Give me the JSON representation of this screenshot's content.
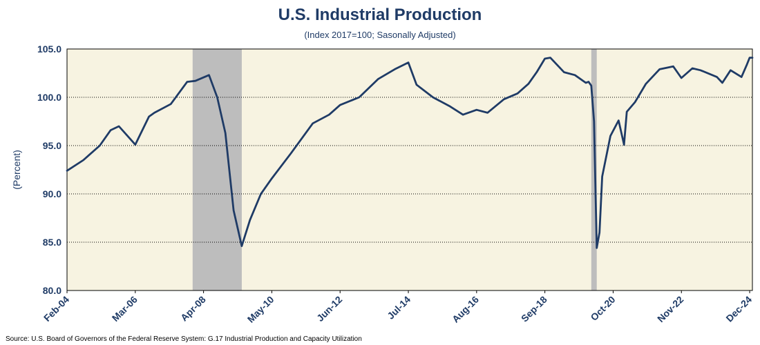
{
  "chart_data": {
    "type": "line",
    "title": "U.S. Industrial Production",
    "subtitle": "(Index 2017=100; Sasonally Adjusted)",
    "xlabel": "",
    "ylabel": "(Percent)",
    "ylim": [
      80,
      105
    ],
    "y_ticks": [
      "80.0",
      "85.0",
      "90.0",
      "95.0",
      "100.0",
      "105.0"
    ],
    "x_ticks": [
      {
        "label": "Feb-04",
        "date": "2004-02"
      },
      {
        "label": "Mar-06",
        "date": "2006-03"
      },
      {
        "label": "Apr-08",
        "date": "2008-04"
      },
      {
        "label": "May-10",
        "date": "2010-05"
      },
      {
        "label": "Jun-12",
        "date": "2012-06"
      },
      {
        "label": "Jul-14",
        "date": "2014-07"
      },
      {
        "label": "Aug-16",
        "date": "2016-08"
      },
      {
        "label": "Sep-18",
        "date": "2018-09"
      },
      {
        "label": "Oct-20",
        "date": "2020-10"
      },
      {
        "label": "Nov-22",
        "date": "2022-11"
      },
      {
        "label": "Dec-24",
        "date": "2024-12"
      }
    ],
    "grid": "horizontal-dotted",
    "recessions": [
      {
        "start": "2007-12",
        "end": "2009-06"
      },
      {
        "start": "2020-02",
        "end": "2020-04"
      }
    ],
    "colors": {
      "line": "#1f3b66",
      "plot_background": "#f7f3e1",
      "recession": "#bdbdbd",
      "text": "#1f3b66"
    },
    "x": [
      "2004-02",
      "2004-08",
      "2005-02",
      "2005-06",
      "2005-09",
      "2006-03",
      "2006-08",
      "2006-10",
      "2007-04",
      "2007-10",
      "2008-01",
      "2008-06",
      "2008-09",
      "2008-12",
      "2009-03",
      "2009-06",
      "2009-09",
      "2010-01",
      "2010-05",
      "2010-12",
      "2011-08",
      "2012-02",
      "2012-06",
      "2013-01",
      "2013-08",
      "2014-02",
      "2014-07",
      "2014-10",
      "2015-04",
      "2015-10",
      "2016-03",
      "2016-08",
      "2016-12",
      "2017-06",
      "2017-11",
      "2018-03",
      "2018-06",
      "2018-09",
      "2018-11",
      "2019-04",
      "2019-08",
      "2019-12",
      "2020-01",
      "2020-02",
      "2020-03",
      "2020-04",
      "2020-05",
      "2020-06",
      "2020-09",
      "2020-12",
      "2021-02",
      "2021-03",
      "2021-06",
      "2021-10",
      "2022-03",
      "2022-08",
      "2022-11",
      "2023-03",
      "2023-06",
      "2023-12",
      "2024-02",
      "2024-05",
      "2024-09",
      "2024-11",
      "2024-12",
      "2025-01"
    ],
    "series": [
      {
        "values": [
          92.4,
          93.5,
          95.0,
          96.6,
          97.0,
          95.1,
          98.0,
          98.4,
          99.3,
          101.6,
          101.7,
          102.3,
          100.0,
          96.3,
          88.3,
          84.6,
          87.3,
          90.0,
          91.6,
          94.2,
          97.3,
          98.2,
          99.2,
          100.0,
          101.9,
          102.9,
          103.6,
          101.3,
          100.0,
          99.1,
          98.2,
          98.7,
          98.4,
          99.8,
          100.4,
          101.4,
          102.6,
          104.0,
          104.1,
          102.6,
          102.3,
          101.5,
          101.6,
          101.2,
          97.5,
          84.4,
          86.0,
          91.8,
          96.0,
          97.6,
          95.1,
          98.5,
          99.5,
          101.4,
          102.9,
          103.2,
          102.0,
          103.0,
          102.8,
          102.1,
          101.5,
          102.8,
          102.1,
          103.4,
          104.1,
          104.1
        ]
      }
    ]
  },
  "source": "Source: U.S. Board of Governors of the Federal Reserve System: G.17 Industrial Production and Capacity Utilization"
}
